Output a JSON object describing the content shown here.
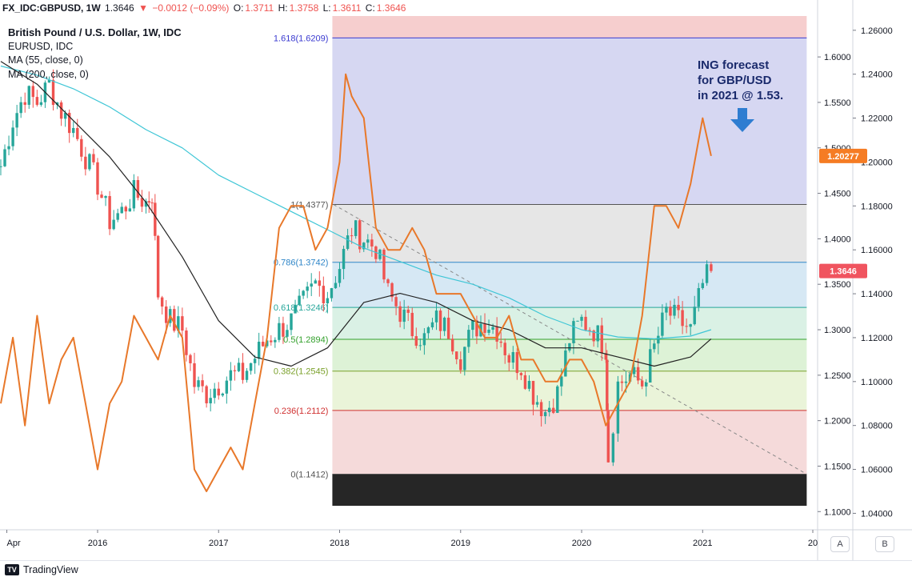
{
  "header": {
    "symbol": "FX_IDC:GBPUSD, 1W",
    "last": "1.3646",
    "change_arrow": "▼",
    "change": "−0.0012 (−0.09%)",
    "open_label": "O:",
    "open": "1.3711",
    "high_label": "H:",
    "high": "1.3758",
    "low_label": "L:",
    "low": "1.3611",
    "close_label": "C:",
    "close": "1.3646"
  },
  "legend": {
    "title": "British Pound / U.S. Dollar, 1W, IDC",
    "overlay": "EURUSD, IDC",
    "ma55": "MA (55, close, 0)",
    "ma200": "MA (200, close, 0)"
  },
  "annotation": {
    "lines": [
      "ING forecast",
      "for GBP/USD",
      "in 2021 @ 1.53."
    ],
    "arrow_color": "#2e7dd1"
  },
  "price_badges": {
    "eurusd": "1.20277",
    "gbpusd": "1.3646"
  },
  "footer": {
    "logo": "TradingView",
    "btn_a": "A",
    "btn_b": "B"
  },
  "colors": {
    "candle_up": "#26a69a",
    "candle_down": "#ef5350",
    "eurusd_line": "#e8782a",
    "ma55": "#222222",
    "ma200": "#3ec6d6",
    "badge_orange": "#f57c24",
    "badge_red": "#f0545f"
  },
  "chart_data": {
    "type": "line",
    "title": "British Pound / U.S. Dollar, 1W, IDC",
    "x_ticks": [
      "Apr",
      "2016",
      "2017",
      "2018",
      "2019",
      "2020",
      "2021",
      "20"
    ],
    "left_axis_ticks": [
      "1.6000",
      "1.5500",
      "1.5000",
      "1.4500",
      "1.4000",
      "1.3500",
      "1.3000",
      "1.2500",
      "1.2000",
      "1.1500",
      "1.1000"
    ],
    "right_axis_ticks": [
      "1.26000",
      "1.24000",
      "1.22000",
      "1.20000",
      "1.18000",
      "1.16000",
      "1.14000",
      "1.12000",
      "1.10000",
      "1.08000",
      "1.06000",
      "1.04000"
    ],
    "left_axis_range": [
      1.08,
      1.645
    ],
    "right_axis_range": [
      1.0325,
      1.2665
    ],
    "fibonacci": {
      "levels": [
        {
          "ratio": 1.618,
          "price": 1.6209,
          "label": "1.618(1.6209)",
          "color": "#3a3ad0"
        },
        {
          "ratio": 1,
          "price": 1.4377,
          "label": "1(1.4377)",
          "color": "#555555"
        },
        {
          "ratio": 0.786,
          "price": 1.3742,
          "label": "0.786(1.3742)",
          "color": "#2f86c8"
        },
        {
          "ratio": 0.618,
          "price": 1.3246,
          "label": "0.618(1.3246)",
          "color": "#26a69a"
        },
        {
          "ratio": 0.5,
          "price": 1.2894,
          "label": "0.5(1.2894)",
          "color": "#33a02c"
        },
        {
          "ratio": 0.382,
          "price": 1.2545,
          "label": "0.382(1.2545)",
          "color": "#7aa02a"
        },
        {
          "ratio": 0.236,
          "price": 1.2112,
          "label": "0.236(1.2112)",
          "color": "#d03030"
        },
        {
          "ratio": 0,
          "price": 1.1412,
          "label": "0(1.1412)",
          "color": "#555555"
        }
      ],
      "fills": [
        "#f5c6c6",
        "#cfd0f0",
        "#e2e2e2",
        "#cfe4f2",
        "#d4efe0",
        "#d7f0cf",
        "#e6f2d2",
        "#f3d4d4"
      ]
    },
    "series": [
      {
        "name": "GBPUSD",
        "kind": "candlestick-close",
        "axis": "left",
        "x": [
          2015.2,
          2015.3,
          2015.4,
          2015.5,
          2015.6,
          2015.7,
          2015.8,
          2015.9,
          2016.0,
          2016.1,
          2016.2,
          2016.3,
          2016.4,
          2016.45,
          2016.5,
          2016.6,
          2016.7,
          2016.8,
          2016.9,
          2017.0,
          2017.1,
          2017.2,
          2017.3,
          2017.4,
          2017.5,
          2017.6,
          2017.7,
          2017.8,
          2017.9,
          2018.0,
          2018.1,
          2018.2,
          2018.3,
          2018.4,
          2018.5,
          2018.6,
          2018.7,
          2018.8,
          2018.9,
          2019.0,
          2019.1,
          2019.2,
          2019.3,
          2019.4,
          2019.5,
          2019.6,
          2019.7,
          2019.8,
          2019.9,
          2020.0,
          2020.1,
          2020.2,
          2020.22,
          2020.3,
          2020.4,
          2020.5,
          2020.6,
          2020.7,
          2020.8,
          2020.9,
          2021.0,
          2021.07
        ],
        "y": [
          1.48,
          1.53,
          1.56,
          1.55,
          1.57,
          1.54,
          1.52,
          1.49,
          1.46,
          1.42,
          1.43,
          1.45,
          1.44,
          1.45,
          1.34,
          1.31,
          1.3,
          1.24,
          1.23,
          1.24,
          1.25,
          1.25,
          1.27,
          1.29,
          1.3,
          1.31,
          1.33,
          1.35,
          1.34,
          1.37,
          1.41,
          1.4,
          1.39,
          1.34,
          1.32,
          1.3,
          1.29,
          1.31,
          1.3,
          1.27,
          1.3,
          1.31,
          1.3,
          1.27,
          1.26,
          1.23,
          1.21,
          1.23,
          1.29,
          1.31,
          1.3,
          1.28,
          1.16,
          1.24,
          1.25,
          1.24,
          1.28,
          1.32,
          1.31,
          1.3,
          1.35,
          1.3646
        ]
      },
      {
        "name": "EURUSD",
        "axis": "right",
        "x": [
          2015.2,
          2015.3,
          2015.4,
          2015.5,
          2015.6,
          2015.7,
          2015.8,
          2015.9,
          2016.0,
          2016.1,
          2016.2,
          2016.3,
          2016.4,
          2016.5,
          2016.6,
          2016.7,
          2016.8,
          2016.9,
          2017.0,
          2017.1,
          2017.2,
          2017.3,
          2017.4,
          2017.5,
          2017.6,
          2017.7,
          2017.8,
          2017.9,
          2018.0,
          2018.05,
          2018.1,
          2018.2,
          2018.3,
          2018.4,
          2018.5,
          2018.6,
          2018.7,
          2018.8,
          2018.9,
          2019.0,
          2019.1,
          2019.2,
          2019.3,
          2019.4,
          2019.5,
          2019.6,
          2019.7,
          2019.8,
          2019.9,
          2020.0,
          2020.1,
          2020.2,
          2020.3,
          2020.4,
          2020.5,
          2020.6,
          2020.7,
          2020.8,
          2020.9,
          2021.0,
          2021.07
        ],
        "y": [
          1.09,
          1.12,
          1.08,
          1.13,
          1.09,
          1.11,
          1.12,
          1.09,
          1.06,
          1.09,
          1.1,
          1.13,
          1.12,
          1.11,
          1.13,
          1.12,
          1.06,
          1.05,
          1.06,
          1.07,
          1.06,
          1.09,
          1.12,
          1.17,
          1.18,
          1.18,
          1.16,
          1.17,
          1.2,
          1.24,
          1.23,
          1.22,
          1.17,
          1.16,
          1.16,
          1.17,
          1.16,
          1.14,
          1.14,
          1.14,
          1.13,
          1.12,
          1.12,
          1.13,
          1.11,
          1.11,
          1.1,
          1.1,
          1.11,
          1.11,
          1.1,
          1.08,
          1.09,
          1.1,
          1.13,
          1.18,
          1.18,
          1.17,
          1.19,
          1.22,
          1.20277
        ]
      },
      {
        "name": "MA 55",
        "axis": "left",
        "x": [
          2015.2,
          2015.5,
          2015.8,
          2016.1,
          2016.4,
          2016.7,
          2017.0,
          2017.3,
          2017.6,
          2017.9,
          2018.2,
          2018.5,
          2018.8,
          2019.1,
          2019.4,
          2019.7,
          2020.0,
          2020.3,
          2020.6,
          2020.9,
          2021.07
        ],
        "y": [
          1.595,
          1.57,
          1.53,
          1.49,
          1.44,
          1.38,
          1.31,
          1.27,
          1.26,
          1.28,
          1.33,
          1.34,
          1.33,
          1.31,
          1.3,
          1.28,
          1.28,
          1.27,
          1.26,
          1.27,
          1.29
        ]
      },
      {
        "name": "MA 200",
        "axis": "left",
        "x": [
          2015.2,
          2015.5,
          2015.8,
          2016.1,
          2016.4,
          2016.7,
          2017.0,
          2017.3,
          2017.6,
          2017.9,
          2018.2,
          2018.5,
          2018.8,
          2019.1,
          2019.4,
          2019.7,
          2020.0,
          2020.3,
          2020.6,
          2020.9,
          2021.07
        ],
        "y": [
          1.59,
          1.58,
          1.565,
          1.545,
          1.52,
          1.5,
          1.47,
          1.45,
          1.43,
          1.41,
          1.39,
          1.375,
          1.36,
          1.35,
          1.335,
          1.315,
          1.3,
          1.292,
          1.29,
          1.293,
          1.3
        ]
      }
    ]
  }
}
